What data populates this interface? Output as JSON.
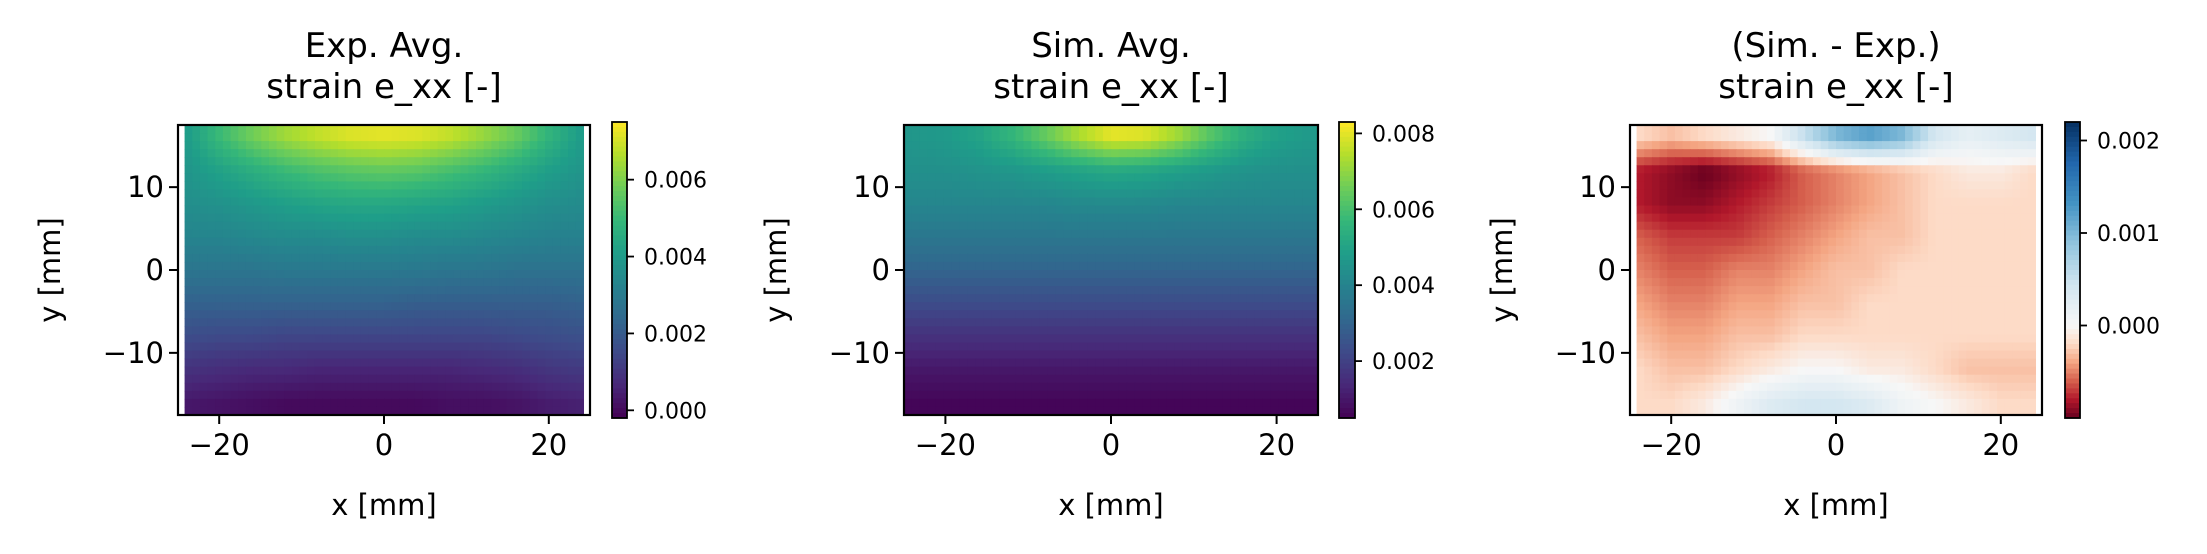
{
  "chart_data": [
    {
      "type": "heatmap",
      "title": [
        "Exp. Avg.",
        "strain e_xx [-]"
      ],
      "xlabel": "x [mm]",
      "ylabel": "y [mm]",
      "xlim": [
        -25,
        25
      ],
      "ylim": [
        -17.5,
        17.5
      ],
      "xticks": [
        -20,
        0,
        20
      ],
      "yticks": [
        -10,
        0,
        10
      ],
      "xtick_labels": [
        "−20",
        "0",
        "20"
      ],
      "ytick_labels": [
        "−10",
        "0",
        "10"
      ],
      "colormap": "viridis",
      "clim": [
        -0.0002,
        0.0075
      ],
      "colorbar_ticks": [
        0.0,
        0.002,
        0.004,
        0.006
      ],
      "colorbar_tick_labels": [
        "0.000",
        "0.002",
        "0.004",
        "0.006"
      ],
      "field": {
        "x": [
          -24,
          -20,
          -16,
          -12,
          -8,
          -4,
          0,
          4,
          8,
          12,
          16,
          20,
          24
        ],
        "y": [
          16,
          12,
          8,
          4,
          0,
          -4,
          -8,
          -12,
          -16
        ],
        "values": [
          [
            0.004,
            0.005,
            0.0058,
            0.0064,
            0.0068,
            0.0071,
            0.0072,
            0.0071,
            0.0068,
            0.0063,
            0.0057,
            0.0048,
            0.004
          ],
          [
            0.0038,
            0.0042,
            0.0046,
            0.005,
            0.0053,
            0.0055,
            0.0056,
            0.0055,
            0.0052,
            0.0049,
            0.0045,
            0.0041,
            0.0038
          ],
          [
            0.0036,
            0.0037,
            0.0039,
            0.0041,
            0.0043,
            0.0044,
            0.0044,
            0.0043,
            0.0042,
            0.004,
            0.0038,
            0.0036,
            0.0035
          ],
          [
            0.0033,
            0.0033,
            0.0034,
            0.0035,
            0.0035,
            0.0036,
            0.0036,
            0.0035,
            0.0035,
            0.0034,
            0.0033,
            0.0032,
            0.0032
          ],
          [
            0.0028,
            0.0028,
            0.0028,
            0.0029,
            0.0029,
            0.0029,
            0.0029,
            0.0029,
            0.0028,
            0.0028,
            0.0027,
            0.0027,
            0.0027
          ],
          [
            0.0022,
            0.0022,
            0.0022,
            0.0022,
            0.0022,
            0.0022,
            0.0022,
            0.0021,
            0.0021,
            0.0021,
            0.0021,
            0.0021,
            0.0022
          ],
          [
            0.0016,
            0.0015,
            0.0015,
            0.0014,
            0.0014,
            0.0014,
            0.0014,
            0.0014,
            0.0014,
            0.0014,
            0.0015,
            0.0016,
            0.0017
          ],
          [
            0.0009,
            0.0008,
            0.0007,
            0.0007,
            0.0006,
            0.0006,
            0.0006,
            0.0006,
            0.0006,
            0.0007,
            0.0008,
            0.001,
            0.0011
          ],
          [
            0.0003,
            0.0002,
            0.0001,
            0.0,
            0.0,
            0.0,
            0.0,
            0.0,
            0.0001,
            0.0001,
            0.0002,
            0.0004,
            0.0005
          ]
        ]
      }
    },
    {
      "type": "heatmap",
      "title": [
        "Sim. Avg.",
        "strain e_xx [-]"
      ],
      "xlabel": "x [mm]",
      "ylabel": "y [mm]",
      "xlim": [
        -25,
        25
      ],
      "ylim": [
        -17.5,
        17.5
      ],
      "xticks": [
        -20,
        0,
        20
      ],
      "yticks": [
        -10,
        0,
        10
      ],
      "xtick_labels": [
        "−20",
        "0",
        "20"
      ],
      "ytick_labels": [
        "−10",
        "0",
        "10"
      ],
      "colormap": "viridis",
      "clim": [
        0.0005,
        0.0083
      ],
      "colorbar_ticks": [
        0.002,
        0.004,
        0.006,
        0.008
      ],
      "colorbar_tick_labels": [
        "0.002",
        "0.004",
        "0.006",
        "0.008"
      ],
      "field": {
        "x": [
          -24,
          -20,
          -16,
          -12,
          -8,
          -4,
          0,
          4,
          8,
          12,
          16,
          20,
          24
        ],
        "y": [
          16,
          12,
          8,
          4,
          0,
          -4,
          -8,
          -12,
          -16
        ],
        "values": [
          [
            0.0046,
            0.0047,
            0.005,
            0.0056,
            0.0064,
            0.0073,
            0.008,
            0.0079,
            0.0072,
            0.0062,
            0.0054,
            0.0049,
            0.0047
          ],
          [
            0.0044,
            0.0044,
            0.0045,
            0.0046,
            0.0048,
            0.005,
            0.0052,
            0.0051,
            0.0049,
            0.0047,
            0.0045,
            0.0044,
            0.0044
          ],
          [
            0.0041,
            0.0041,
            0.0041,
            0.0041,
            0.0041,
            0.0042,
            0.0042,
            0.0042,
            0.0041,
            0.0041,
            0.0041,
            0.0041,
            0.0041
          ],
          [
            0.0036,
            0.0036,
            0.0036,
            0.0036,
            0.0036,
            0.0036,
            0.0036,
            0.0036,
            0.0036,
            0.0036,
            0.0036,
            0.0036,
            0.0036
          ],
          [
            0.003,
            0.003,
            0.003,
            0.003,
            0.003,
            0.003,
            0.003,
            0.003,
            0.003,
            0.003,
            0.003,
            0.003,
            0.003
          ],
          [
            0.0023,
            0.0023,
            0.0023,
            0.0023,
            0.0023,
            0.0023,
            0.0023,
            0.0023,
            0.0023,
            0.0023,
            0.0023,
            0.0023,
            0.0023
          ],
          [
            0.0016,
            0.0016,
            0.0016,
            0.0016,
            0.0016,
            0.0016,
            0.0016,
            0.0016,
            0.0016,
            0.0016,
            0.0016,
            0.0016,
            0.0016
          ],
          [
            0.001,
            0.001,
            0.001,
            0.001,
            0.001,
            0.001,
            0.001,
            0.001,
            0.001,
            0.001,
            0.001,
            0.001,
            0.001
          ],
          [
            0.0006,
            0.0006,
            0.0006,
            0.0006,
            0.0006,
            0.0006,
            0.0006,
            0.0006,
            0.0006,
            0.0006,
            0.0006,
            0.0006,
            0.0006
          ]
        ]
      }
    },
    {
      "type": "heatmap",
      "title": [
        "(Sim. - Exp.)",
        "strain e_xx [-]"
      ],
      "xlabel": "x [mm]",
      "ylabel": "y [mm]",
      "xlim": [
        -25,
        25
      ],
      "ylim": [
        -17.5,
        17.5
      ],
      "xticks": [
        -20,
        0,
        20
      ],
      "yticks": [
        -10,
        0,
        10
      ],
      "xtick_labels": [
        "−20",
        "0",
        "20"
      ],
      "ytick_labels": [
        "−10",
        "0",
        "10"
      ],
      "colormap": "RdBu",
      "clim": [
        -0.001,
        0.0022
      ],
      "colorbar_ticks": [
        0.0,
        0.001,
        0.002
      ],
      "colorbar_tick_labels": [
        "0.000",
        "0.001",
        "0.002"
      ],
      "field": {
        "x": [
          -24,
          -20,
          -16,
          -12,
          -8,
          -4,
          0,
          4,
          8,
          12,
          16,
          20,
          24
        ],
        "y": [
          16,
          12,
          8,
          4,
          0,
          -4,
          -8,
          -12,
          -16
        ],
        "values": [
          [
            -0.0002,
            -0.0003,
            -0.0002,
            -0.0001,
            0.0,
            0.0005,
            0.001,
            0.0012,
            0.001,
            0.0004,
            0.0002,
            0.0003,
            0.0004
          ],
          [
            -0.0008,
            -0.0009,
            -0.001,
            -0.0009,
            -0.0008,
            -0.0006,
            -0.0005,
            -0.0004,
            -0.0003,
            -0.0002,
            -0.0001,
            -0.0001,
            -0.0002
          ],
          [
            -0.0008,
            -0.0009,
            -0.0009,
            -0.0008,
            -0.0007,
            -0.0006,
            -0.0005,
            -0.0004,
            -0.0003,
            -0.0002,
            -0.0002,
            -0.0002,
            -0.0002
          ],
          [
            -0.0006,
            -0.0007,
            -0.0007,
            -0.0007,
            -0.0006,
            -0.0005,
            -0.0004,
            -0.0003,
            -0.0003,
            -0.0002,
            -0.0002,
            -0.0002,
            -0.0002
          ],
          [
            -0.0005,
            -0.0006,
            -0.0006,
            -0.0005,
            -0.0005,
            -0.0004,
            -0.0003,
            -0.0003,
            -0.0002,
            -0.0002,
            -0.0002,
            -0.0002,
            -0.0002
          ],
          [
            -0.0004,
            -0.0005,
            -0.0005,
            -0.0004,
            -0.0004,
            -0.0003,
            -0.0003,
            -0.0002,
            -0.0002,
            -0.0002,
            -0.0002,
            -0.0002,
            -0.0002
          ],
          [
            -0.0003,
            -0.0004,
            -0.0004,
            -0.0003,
            -0.0003,
            -0.0002,
            -0.0002,
            -0.0002,
            -0.0002,
            -0.0002,
            -0.0002,
            -0.0002,
            -0.0002
          ],
          [
            -0.0002,
            -0.0003,
            -0.0003,
            -0.0002,
            -0.0001,
            0.0,
            0.0,
            -0.0001,
            -0.0001,
            -0.0002,
            -0.0003,
            -0.0003,
            -0.0003
          ],
          [
            -0.0002,
            -0.0002,
            -0.0001,
            0.0001,
            0.0003,
            0.0004,
            0.0004,
            0.0003,
            0.0001,
            0.0,
            -0.0001,
            -0.0002,
            -0.0002
          ]
        ]
      }
    }
  ]
}
